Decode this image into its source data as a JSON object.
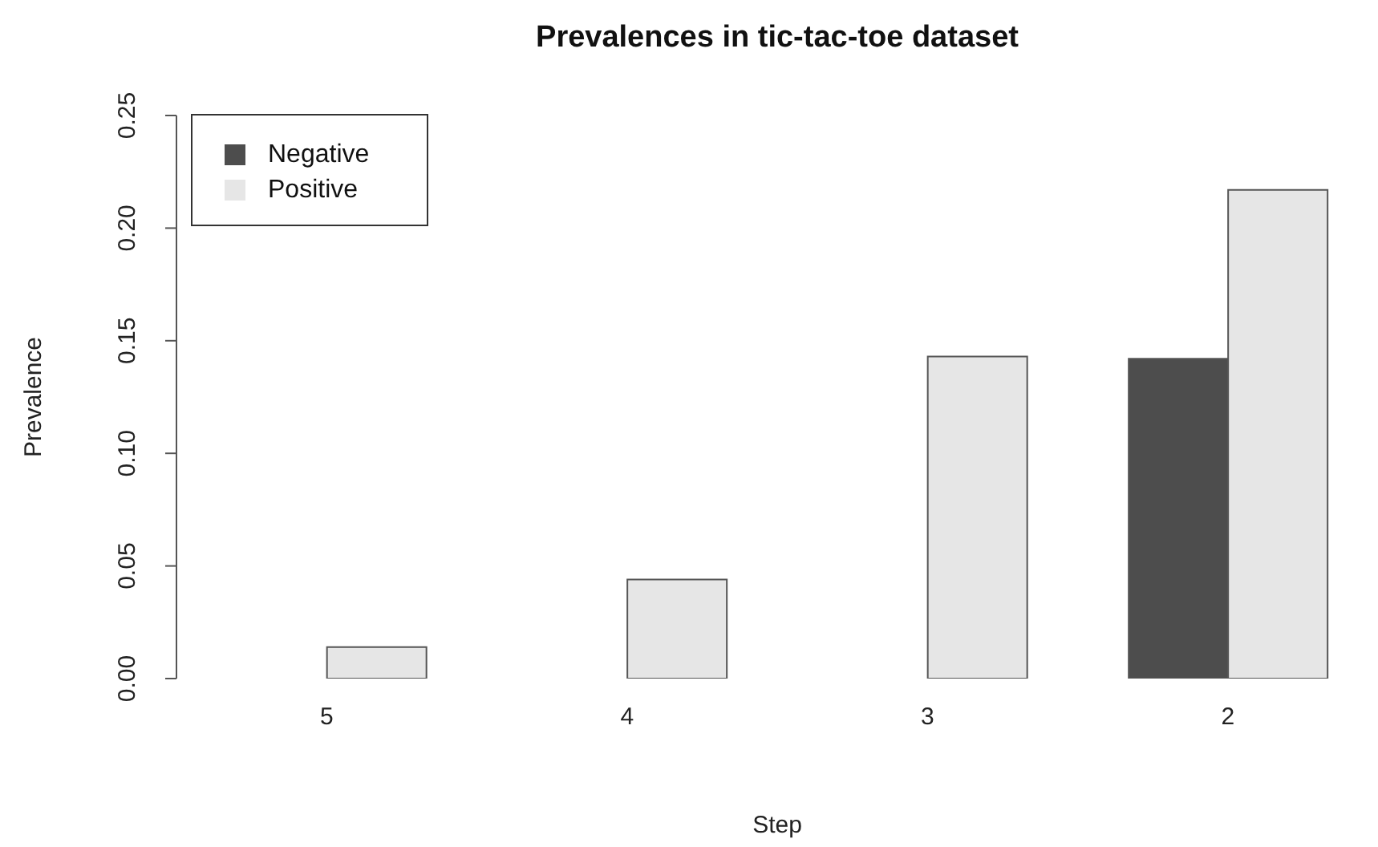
{
  "chart_data": {
    "type": "bar",
    "title": "Prevalences in tic-tac-toe dataset",
    "xlabel": "Step",
    "ylabel": "Prevalence",
    "categories": [
      "5",
      "4",
      "3",
      "2"
    ],
    "series": [
      {
        "name": "Negative",
        "color": "#4d4d4d",
        "values": [
          0,
          0,
          0,
          0.142
        ]
      },
      {
        "name": "Positive",
        "color": "#e6e6e6",
        "values": [
          0.014,
          0.044,
          0.143,
          0.217
        ]
      }
    ],
    "ylim": [
      0,
      0.25
    ],
    "yticks": [
      {
        "value": 0,
        "label": "0.00"
      },
      {
        "value": 0.05,
        "label": "0.05"
      },
      {
        "value": 0.1,
        "label": "0.10"
      },
      {
        "value": 0.15,
        "label": "0.15"
      },
      {
        "value": 0.2,
        "label": "0.20"
      },
      {
        "value": 0.25,
        "label": "0.25"
      }
    ],
    "legend": "top left",
    "grid": false
  }
}
